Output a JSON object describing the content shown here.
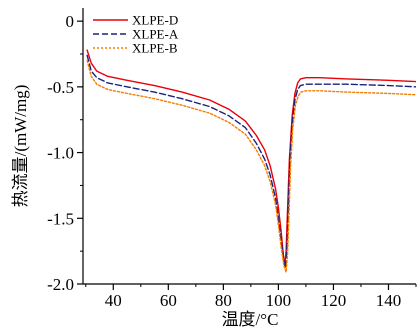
{
  "chart_data": {
    "type": "line",
    "title": "",
    "xlabel": "温度/°C",
    "ylabel": "热流量/(mW/mg)",
    "xlim": [
      29,
      150
    ],
    "ylim": [
      -2.0,
      0.1
    ],
    "x_ticks": [
      40,
      60,
      80,
      100,
      120,
      140
    ],
    "y_ticks": [
      0,
      -0.5,
      -1.0,
      -1.5,
      -2.0
    ],
    "x_tick_labels": [
      "40",
      "60",
      "80",
      "100",
      "120",
      "140"
    ],
    "y_tick_labels": [
      "0",
      "-0.5",
      "-1.0",
      "-1.5",
      "-2.0"
    ],
    "grid": false,
    "legend_position": "top-left",
    "series": [
      {
        "name": "XLPE-D",
        "color": "#e8000b",
        "dash": "solid",
        "x": [
          30.5,
          32,
          34,
          38,
          45,
          55,
          65,
          75,
          82,
          88,
          92,
          95,
          97,
          99,
          100,
          101,
          101.8,
          102.3,
          102.8,
          103.3,
          104,
          105,
          106,
          107,
          108,
          110,
          115,
          125,
          140,
          150
        ],
        "y": [
          -0.22,
          -0.32,
          -0.38,
          -0.42,
          -0.45,
          -0.49,
          -0.54,
          -0.6,
          -0.67,
          -0.76,
          -0.87,
          -0.98,
          -1.1,
          -1.28,
          -1.42,
          -1.6,
          -1.78,
          -1.86,
          -1.75,
          -1.45,
          -1.05,
          -0.72,
          -0.55,
          -0.47,
          -0.44,
          -0.43,
          -0.43,
          -0.44,
          -0.45,
          -0.46
        ]
      },
      {
        "name": "XLPE-A",
        "color": "#1a237e",
        "dash": "dashed",
        "x": [
          30.5,
          32,
          34,
          38,
          45,
          55,
          65,
          75,
          82,
          88,
          92,
          95,
          97,
          99,
          100,
          101,
          102,
          102.6,
          103.1,
          103.6,
          104.2,
          105,
          106,
          107,
          108,
          110,
          115,
          125,
          140,
          150
        ],
        "y": [
          -0.26,
          -0.38,
          -0.43,
          -0.47,
          -0.5,
          -0.54,
          -0.59,
          -0.65,
          -0.72,
          -0.81,
          -0.93,
          -1.05,
          -1.17,
          -1.35,
          -1.5,
          -1.67,
          -1.82,
          -1.88,
          -1.72,
          -1.42,
          -1.05,
          -0.78,
          -0.6,
          -0.52,
          -0.49,
          -0.48,
          -0.48,
          -0.48,
          -0.49,
          -0.5
        ]
      },
      {
        "name": "XLPE-B",
        "color": "#f57c00",
        "dash": "dotted",
        "x": [
          30.5,
          32,
          34,
          38,
          45,
          55,
          65,
          75,
          82,
          88,
          92,
          95,
          97,
          99,
          100,
          101,
          102,
          102.8,
          103.3,
          103.8,
          104.4,
          105.2,
          106.2,
          107.2,
          108.2,
          110,
          115,
          125,
          140,
          150
        ],
        "y": [
          -0.3,
          -0.42,
          -0.48,
          -0.52,
          -0.55,
          -0.59,
          -0.64,
          -0.7,
          -0.77,
          -0.86,
          -0.98,
          -1.1,
          -1.22,
          -1.4,
          -1.55,
          -1.72,
          -1.86,
          -1.91,
          -1.78,
          -1.5,
          -1.12,
          -0.82,
          -0.64,
          -0.57,
          -0.54,
          -0.53,
          -0.53,
          -0.54,
          -0.55,
          -0.56
        ]
      }
    ]
  }
}
